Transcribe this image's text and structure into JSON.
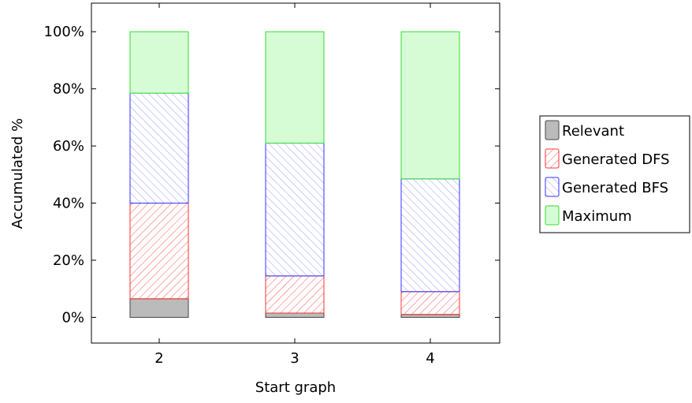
{
  "chart_data": {
    "type": "bar",
    "stacked": true,
    "categories": [
      "2",
      "3",
      "4"
    ],
    "series": [
      {
        "name": "Relevant",
        "values": [
          6.5,
          1.5,
          1.0
        ],
        "color": "#999999",
        "pattern": "solid"
      },
      {
        "name": "Generated DFS",
        "values": [
          33.5,
          13.0,
          8.0
        ],
        "color": "#ff5555",
        "pattern": "hatch-down"
      },
      {
        "name": "Generated BFS",
        "values": [
          38.5,
          46.5,
          39.5
        ],
        "color": "#5555ff",
        "pattern": "hatch-up"
      },
      {
        "name": "Maximum",
        "values": [
          21.5,
          39.0,
          51.5
        ],
        "color": "#33dd33",
        "pattern": "solid-light"
      }
    ],
    "xlabel": "Start graph",
    "ylabel": "Accumulated %",
    "yticks": [
      0,
      20,
      40,
      60,
      80,
      100
    ],
    "ytick_labels": [
      "0%",
      "20%",
      "40%",
      "60%",
      "80%",
      "100%"
    ],
    "ylim": [
      -9,
      110
    ],
    "legend_position": "right",
    "grid": false
  }
}
